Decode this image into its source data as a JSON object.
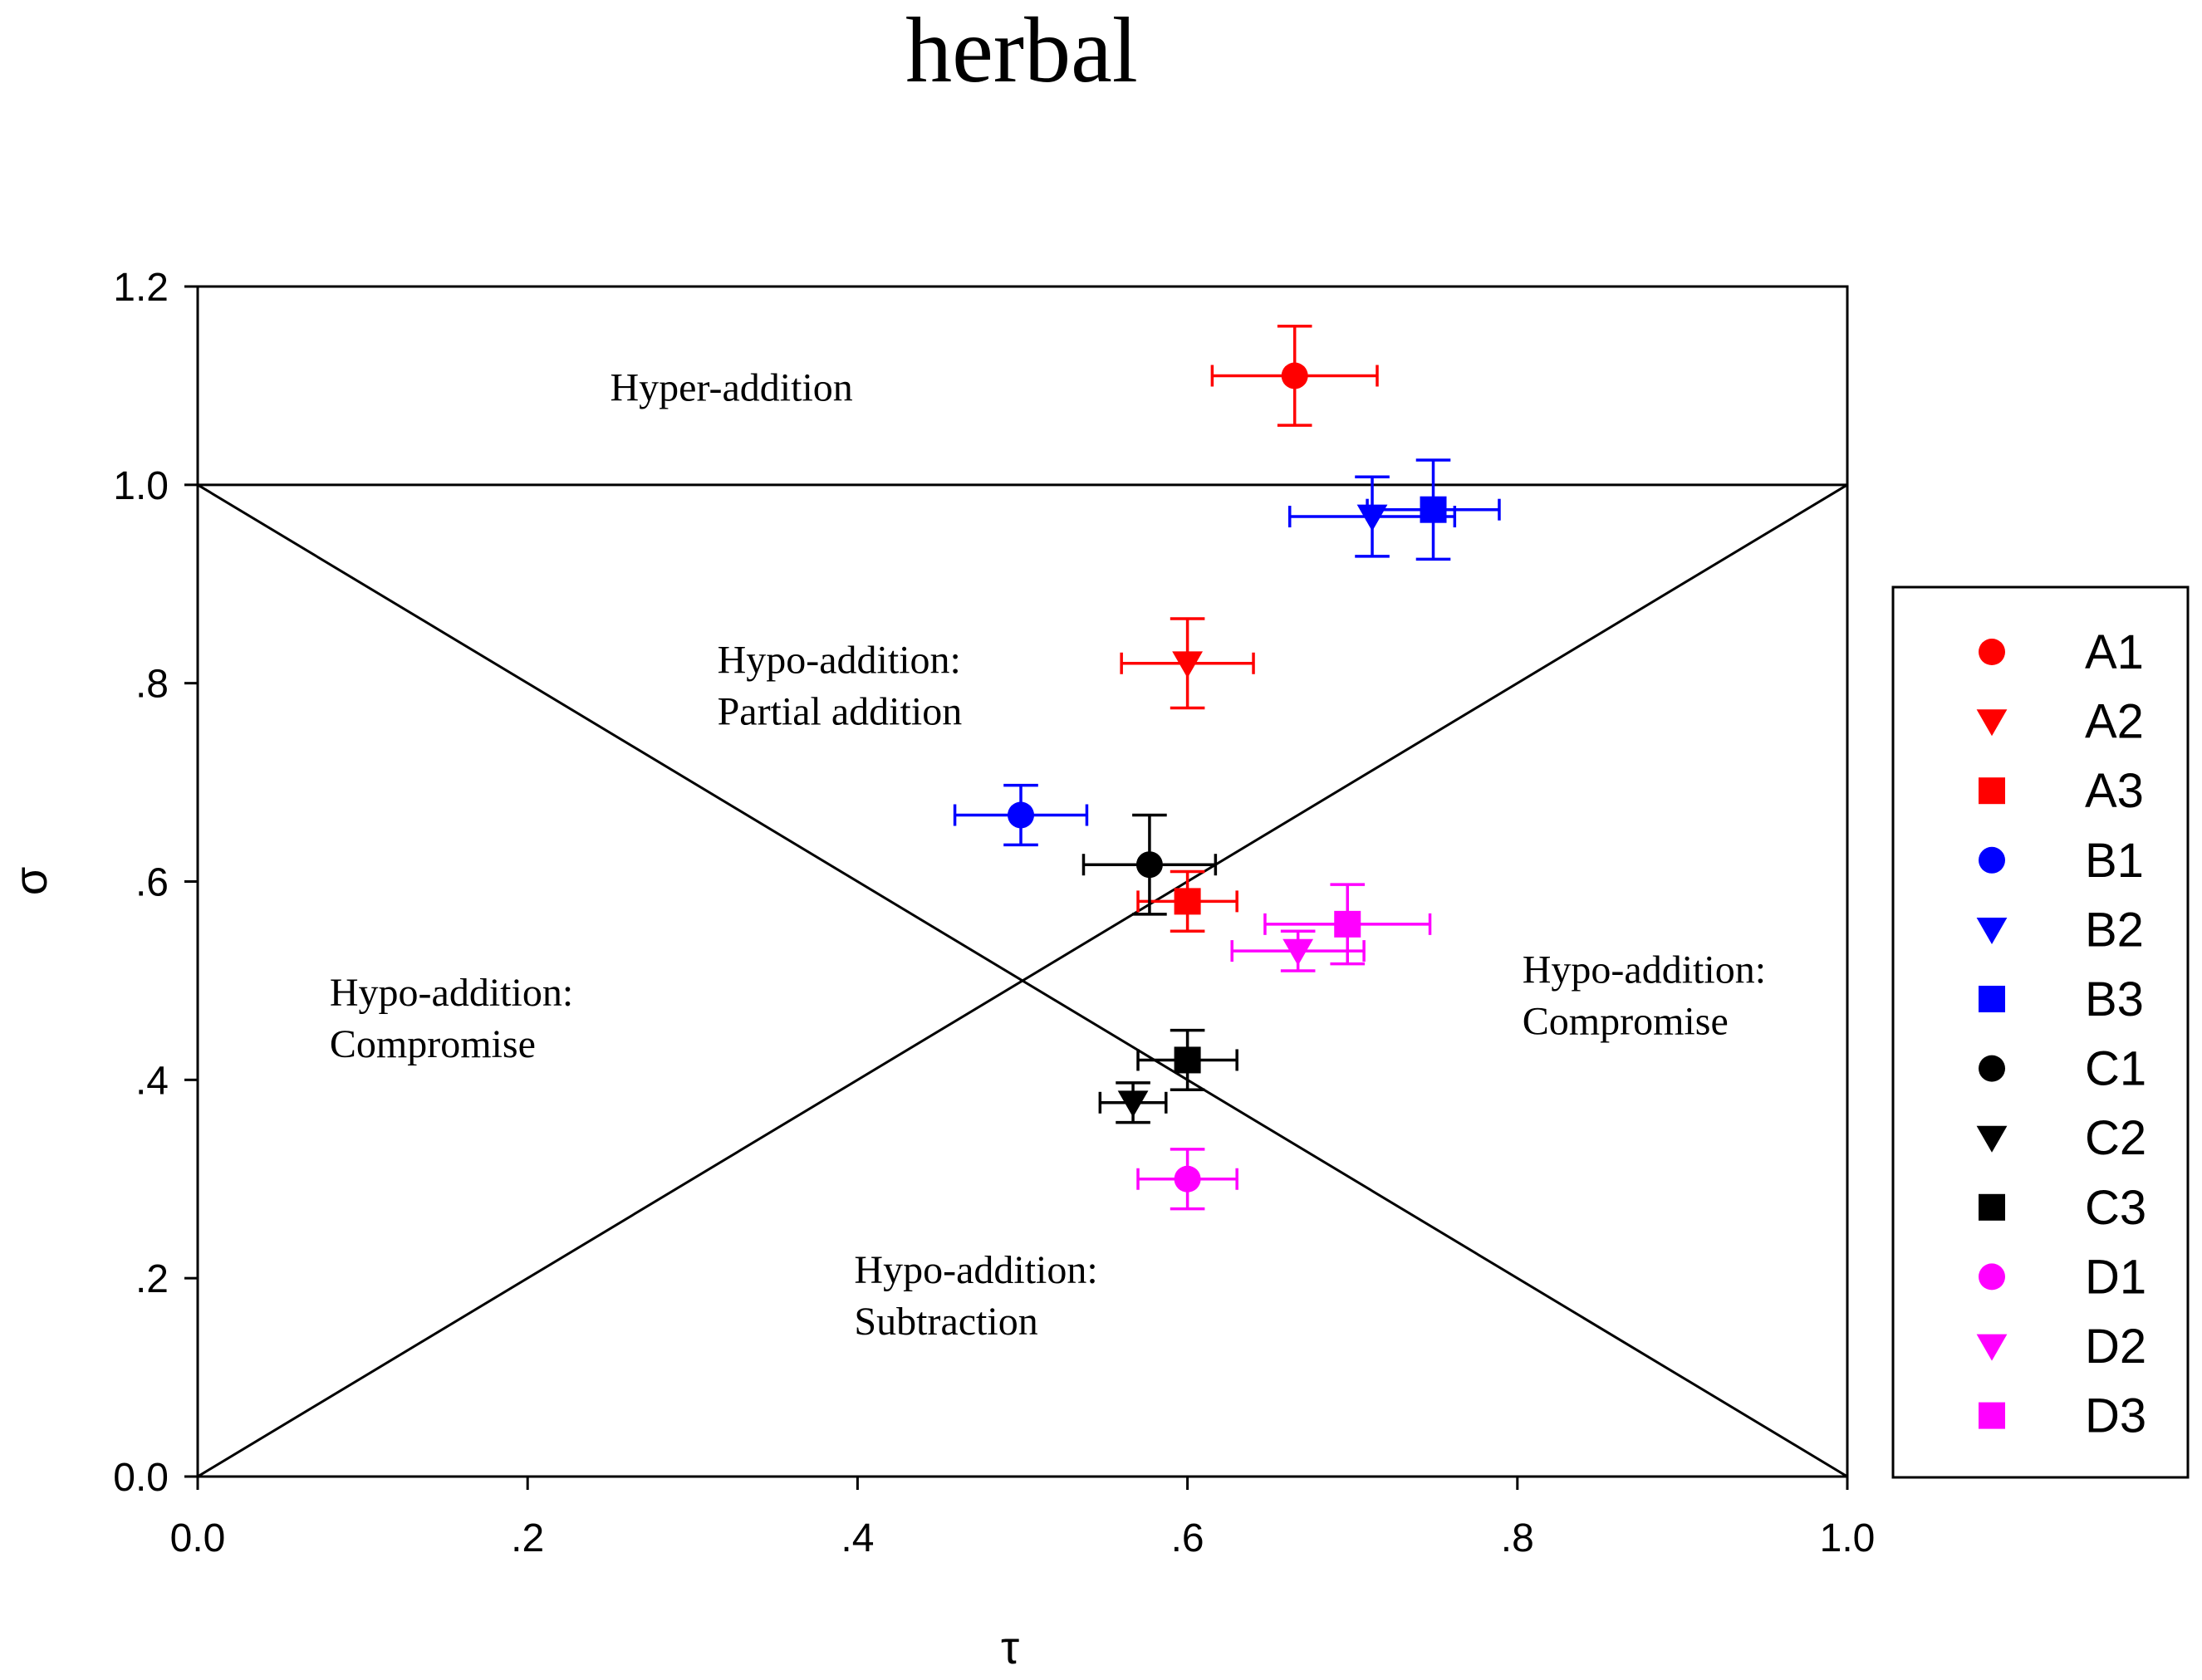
{
  "chart_data": {
    "type": "scatter",
    "title": "herbal",
    "xlabel": "τ",
    "ylabel": "σ",
    "xlim": [
      0.0,
      1.0
    ],
    "ylim": [
      0.0,
      1.2
    ],
    "x_ticks": [
      0.0,
      0.2,
      0.4,
      0.6,
      0.8,
      1.0
    ],
    "x_tick_labels": [
      "0.0",
      ".2",
      ".4",
      ".6",
      ".8",
      "1.0"
    ],
    "y_ticks": [
      0.0,
      0.2,
      0.4,
      0.6,
      0.8,
      1.0,
      1.2
    ],
    "y_tick_labels": [
      "0.0",
      ".2",
      ".4",
      ".6",
      ".8",
      "1.0",
      "1.2"
    ],
    "grid": false,
    "legend_position": "right",
    "reference_lines": [
      {
        "name": "sigma-equals-one",
        "x": [
          0.0,
          1.0
        ],
        "y": [
          1.0,
          1.0
        ]
      },
      {
        "name": "sigma-equals-tau",
        "x": [
          0.0,
          1.0
        ],
        "y": [
          0.0,
          1.0
        ]
      },
      {
        "name": "sigma-equals-one-minus-tau",
        "x": [
          0.0,
          1.0
        ],
        "y": [
          1.0,
          0.0
        ]
      }
    ],
    "regions": [
      {
        "name": "hyper-addition",
        "lines": [
          "Hyper-addition"
        ],
        "x": 0.25,
        "y": 1.085
      },
      {
        "name": "partial-addition",
        "lines": [
          "Hypo-addition:",
          "Partial addition"
        ],
        "x": 0.315,
        "y": 0.81
      },
      {
        "name": "compromise-left",
        "lines": [
          "Hypo-addition:",
          "Compromise"
        ],
        "x": 0.08,
        "y": 0.475
      },
      {
        "name": "compromise-right",
        "lines": [
          "Hypo-addition:",
          "Compromise"
        ],
        "x": 0.803,
        "y": 0.498
      },
      {
        "name": "subtraction",
        "lines": [
          "Hypo-addition:",
          "Subtraction"
        ],
        "x": 0.398,
        "y": 0.195
      }
    ],
    "series": [
      {
        "name": "A1",
        "marker": "circle",
        "color": "#ff0000",
        "x": 0.665,
        "y": 1.11,
        "xerr": 0.05,
        "yerr": 0.05
      },
      {
        "name": "A2",
        "marker": "triangle-down",
        "color": "#ff0000",
        "x": 0.6,
        "y": 0.82,
        "xerr": 0.04,
        "yerr": 0.045
      },
      {
        "name": "A3",
        "marker": "square",
        "color": "#ff0000",
        "x": 0.6,
        "y": 0.58,
        "xerr": 0.03,
        "yerr": 0.03
      },
      {
        "name": "B1",
        "marker": "circle",
        "color": "#0000ff",
        "x": 0.499,
        "y": 0.667,
        "xerr": 0.04,
        "yerr": 0.03
      },
      {
        "name": "B2",
        "marker": "triangle-down",
        "color": "#0000ff",
        "x": 0.712,
        "y": 0.968,
        "xerr": 0.05,
        "yerr": 0.04
      },
      {
        "name": "B3",
        "marker": "square",
        "color": "#0000ff",
        "x": 0.749,
        "y": 0.975,
        "xerr": 0.04,
        "yerr": 0.05
      },
      {
        "name": "C1",
        "marker": "circle",
        "color": "#000000",
        "x": 0.577,
        "y": 0.617,
        "xerr": 0.04,
        "yerr": 0.05
      },
      {
        "name": "C2",
        "marker": "triangle-down",
        "color": "#000000",
        "x": 0.567,
        "y": 0.377,
        "xerr": 0.02,
        "yerr": 0.02
      },
      {
        "name": "C3",
        "marker": "square",
        "color": "#000000",
        "x": 0.6,
        "y": 0.42,
        "xerr": 0.03,
        "yerr": 0.03
      },
      {
        "name": "D1",
        "marker": "circle",
        "color": "#ff00ff",
        "x": 0.6,
        "y": 0.3,
        "xerr": 0.03,
        "yerr": 0.03
      },
      {
        "name": "D2",
        "marker": "triangle-down",
        "color": "#ff00ff",
        "x": 0.667,
        "y": 0.53,
        "xerr": 0.04,
        "yerr": 0.02
      },
      {
        "name": "D3",
        "marker": "square",
        "color": "#ff00ff",
        "x": 0.697,
        "y": 0.557,
        "xerr": 0.05,
        "yerr": 0.04
      }
    ]
  }
}
